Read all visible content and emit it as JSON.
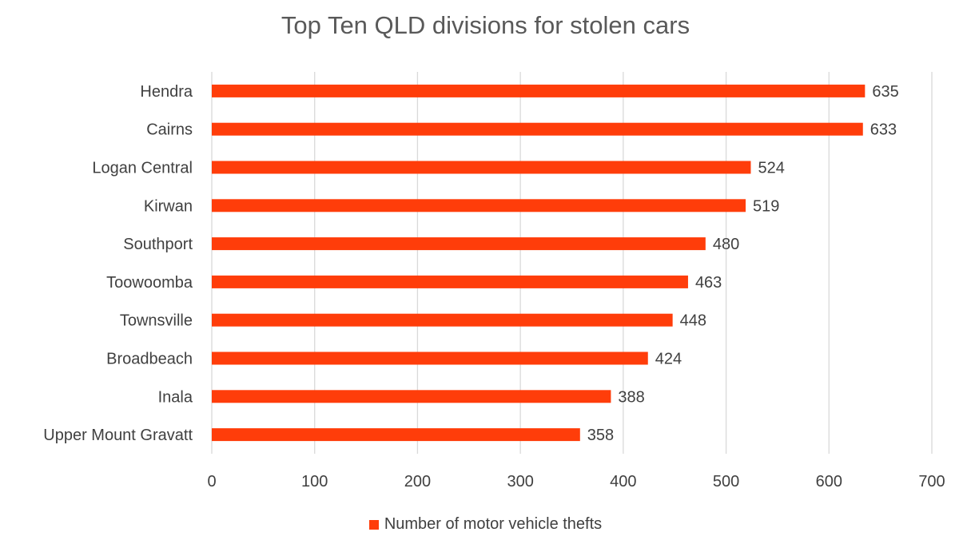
{
  "chart_data": {
    "type": "bar",
    "orientation": "horizontal",
    "title": "Top Ten QLD divisions for stolen cars",
    "categories": [
      "Hendra",
      "Cairns",
      "Logan Central",
      "Kirwan",
      "Southport",
      "Toowoomba",
      "Townsville",
      "Broadbeach",
      "Inala",
      "Upper Mount Gravatt"
    ],
    "series": [
      {
        "name": "Number of motor vehicle thefts",
        "values": [
          635,
          633,
          524,
          519,
          480,
          463,
          448,
          424,
          388,
          358
        ],
        "color": "#ff3d0a"
      }
    ],
    "xlim": [
      0,
      700
    ],
    "xticks": [
      0,
      100,
      200,
      300,
      400,
      500,
      600,
      700
    ],
    "grid": "vertical",
    "legend": "bottom",
    "data_labels": true
  }
}
